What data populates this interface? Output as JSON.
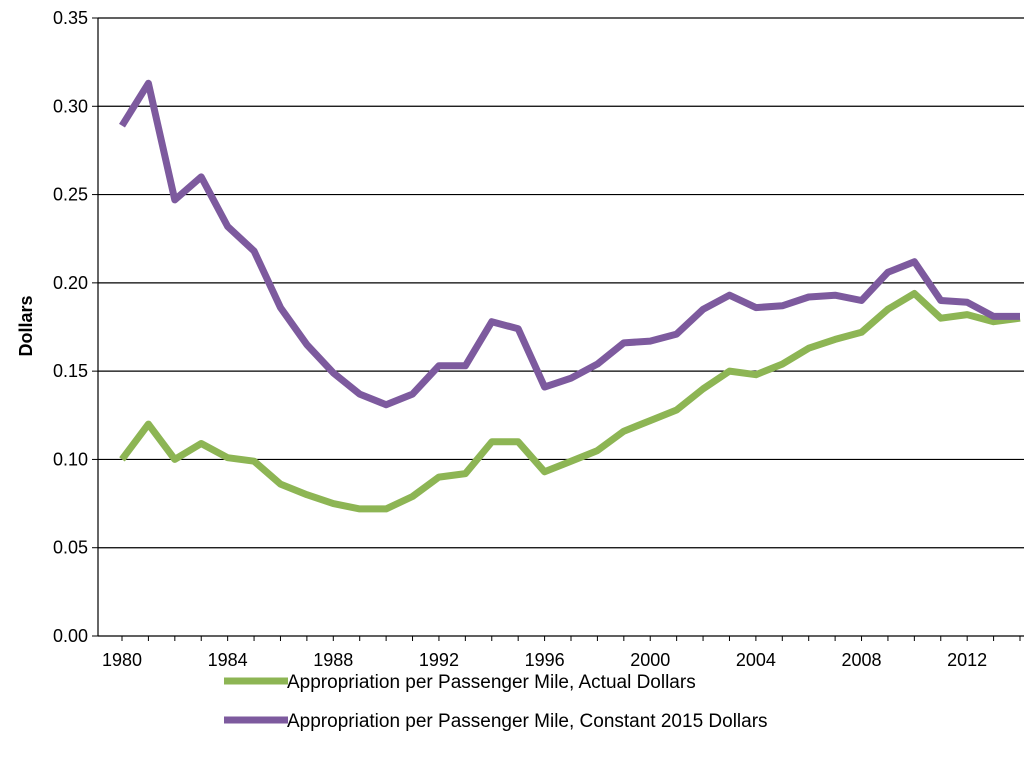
{
  "chart_data": {
    "type": "line",
    "title": "",
    "xlabel": "",
    "ylabel": "Dollars",
    "xlim": [
      1979.5,
      2014.2
    ],
    "ylim": [
      0,
      0.35
    ],
    "grid": true,
    "legend_position": "bottom",
    "x_ticks": [
      1980,
      1984,
      1988,
      1992,
      1996,
      2000,
      2004,
      2008,
      2012
    ],
    "x_tick_labels": [
      "1980",
      "1984",
      "1988",
      "1992",
      "1996",
      "2000",
      "2004",
      "2008",
      "2012"
    ],
    "y_ticks": [
      0,
      0.05,
      0.1,
      0.15,
      0.2,
      0.25,
      0.3,
      0.35
    ],
    "y_tick_labels": [
      "0.00",
      "0.05",
      "0.10",
      "0.15",
      "0.20",
      "0.25",
      "0.30",
      "0.35"
    ],
    "x": [
      1980,
      1981,
      1982,
      1983,
      1984,
      1985,
      1986,
      1987,
      1988,
      1989,
      1990,
      1991,
      1992,
      1993,
      1994,
      1995,
      1996,
      1997,
      1998,
      1999,
      2000,
      2001,
      2002,
      2003,
      2004,
      2005,
      2006,
      2007,
      2008,
      2009,
      2010,
      2011,
      2012,
      2013,
      2014
    ],
    "series": [
      {
        "name": "Appropriation per Passenger Mile, Actual Dollars",
        "color": "#8db554",
        "values": [
          0.1,
          0.12,
          0.1,
          0.109,
          0.101,
          0.099,
          0.086,
          0.08,
          0.075,
          0.072,
          0.072,
          0.079,
          0.09,
          0.092,
          0.11,
          0.11,
          0.093,
          0.099,
          0.105,
          0.116,
          0.122,
          0.128,
          0.14,
          0.15,
          0.148,
          0.154,
          0.163,
          0.168,
          0.172,
          0.185,
          0.194,
          0.18,
          0.182,
          0.178,
          0.18
        ]
      },
      {
        "name": "Appropriation per Passenger Mile, Constant 2015 Dollars",
        "color": "#7d5a9e",
        "values": [
          0.289,
          0.313,
          0.247,
          0.26,
          0.232,
          0.218,
          0.186,
          0.165,
          0.149,
          0.137,
          0.131,
          0.137,
          0.153,
          0.153,
          0.178,
          0.174,
          0.141,
          0.146,
          0.154,
          0.166,
          0.167,
          0.171,
          0.185,
          0.193,
          0.186,
          0.187,
          0.192,
          0.193,
          0.19,
          0.206,
          0.212,
          0.19,
          0.189,
          0.181,
          0.181
        ]
      }
    ]
  }
}
